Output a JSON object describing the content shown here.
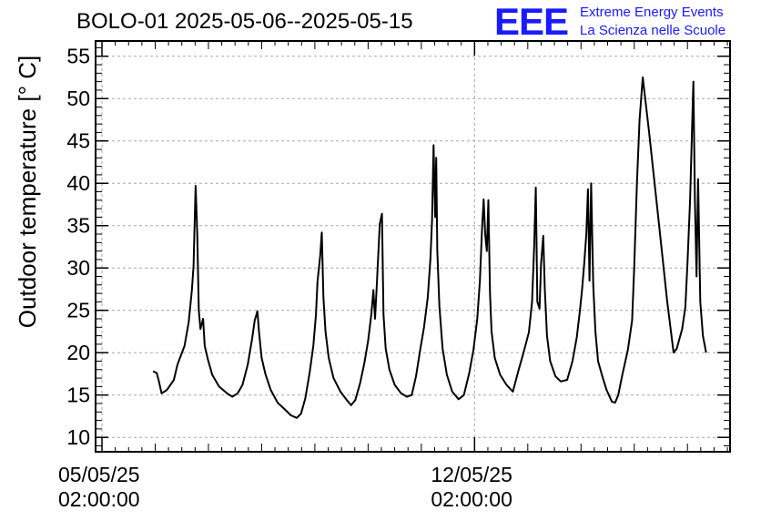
{
  "header": {
    "title": "BOLO-01 2025-05-06--2025-05-15"
  },
  "logo": {
    "mark": "EEE",
    "line1": "Extreme Energy Events",
    "line2": "La Scienza nelle Scuole",
    "color": "#1a1aff"
  },
  "chart_data": {
    "type": "line",
    "title": "BOLO-01 2025-05-06--2025-05-15",
    "xlabel": "",
    "ylabel": "Outdoor temperature [° C]",
    "x_unit": "days after 05/05/25 02:00:00",
    "xlim": [
      -0.12,
      11.8
    ],
    "ylim": [
      8.3,
      56.8
    ],
    "yticks": [
      10,
      15,
      20,
      25,
      30,
      35,
      40,
      45,
      50,
      55
    ],
    "xticks": [
      {
        "x": 0,
        "date": "05/05/25",
        "time": "02:00:00"
      },
      {
        "x": 7,
        "date": "12/05/25",
        "time": "02:00:00"
      }
    ],
    "grid": true,
    "line_color": "#000000",
    "series": [
      {
        "name": "",
        "points": [
          [
            0.96,
            17.8
          ],
          [
            1.03,
            17.6
          ],
          [
            1.07,
            16.6
          ],
          [
            1.12,
            15.2
          ],
          [
            1.22,
            15.6
          ],
          [
            1.35,
            16.8
          ],
          [
            1.42,
            18.6
          ],
          [
            1.55,
            20.8
          ],
          [
            1.63,
            23.6
          ],
          [
            1.69,
            27.4
          ],
          [
            1.72,
            30.2
          ],
          [
            1.76,
            39.7
          ],
          [
            1.79,
            34.0
          ],
          [
            1.82,
            25.0
          ],
          [
            1.85,
            22.8
          ],
          [
            1.9,
            24.0
          ],
          [
            1.93,
            20.8
          ],
          [
            1.99,
            19.2
          ],
          [
            2.07,
            17.4
          ],
          [
            2.2,
            16.0
          ],
          [
            2.35,
            15.2
          ],
          [
            2.45,
            14.8
          ],
          [
            2.55,
            15.2
          ],
          [
            2.64,
            16.2
          ],
          [
            2.74,
            18.6
          ],
          [
            2.82,
            21.6
          ],
          [
            2.87,
            23.8
          ],
          [
            2.92,
            24.9
          ],
          [
            2.95,
            22.5
          ],
          [
            3.0,
            19.4
          ],
          [
            3.07,
            17.5
          ],
          [
            3.17,
            15.6
          ],
          [
            3.3,
            14.1
          ],
          [
            3.42,
            13.4
          ],
          [
            3.55,
            12.6
          ],
          [
            3.66,
            12.3
          ],
          [
            3.74,
            12.8
          ],
          [
            3.82,
            14.6
          ],
          [
            3.9,
            17.6
          ],
          [
            3.97,
            20.8
          ],
          [
            4.02,
            24.5
          ],
          [
            4.05,
            28.4
          ],
          [
            4.1,
            31.5
          ],
          [
            4.13,
            34.2
          ],
          [
            4.16,
            26.5
          ],
          [
            4.2,
            22.5
          ],
          [
            4.26,
            19.4
          ],
          [
            4.35,
            17.0
          ],
          [
            4.48,
            15.4
          ],
          [
            4.6,
            14.4
          ],
          [
            4.68,
            13.8
          ],
          [
            4.76,
            14.4
          ],
          [
            4.85,
            16.4
          ],
          [
            4.93,
            18.8
          ],
          [
            5.0,
            21.4
          ],
          [
            5.06,
            24.5
          ],
          [
            5.1,
            27.4
          ],
          [
            5.13,
            24.0
          ],
          [
            5.16,
            27.5
          ],
          [
            5.22,
            35.2
          ],
          [
            5.26,
            36.4
          ],
          [
            5.29,
            24.5
          ],
          [
            5.33,
            20.5
          ],
          [
            5.4,
            18.0
          ],
          [
            5.5,
            16.2
          ],
          [
            5.62,
            15.2
          ],
          [
            5.73,
            14.8
          ],
          [
            5.82,
            15.0
          ],
          [
            5.9,
            17.2
          ],
          [
            5.98,
            20.4
          ],
          [
            6.05,
            23.0
          ],
          [
            6.12,
            26.5
          ],
          [
            6.17,
            31.0
          ],
          [
            6.2,
            35.5
          ],
          [
            6.23,
            44.5
          ],
          [
            6.26,
            36.0
          ],
          [
            6.28,
            43.0
          ],
          [
            6.3,
            32.0
          ],
          [
            6.34,
            25.5
          ],
          [
            6.4,
            20.5
          ],
          [
            6.48,
            17.4
          ],
          [
            6.58,
            15.4
          ],
          [
            6.7,
            14.5
          ],
          [
            6.8,
            15.0
          ],
          [
            6.9,
            17.6
          ],
          [
            6.98,
            20.4
          ],
          [
            7.05,
            24.0
          ],
          [
            7.1,
            28.5
          ],
          [
            7.14,
            34.5
          ],
          [
            7.17,
            38.1
          ],
          [
            7.2,
            34.0
          ],
          [
            7.23,
            32.0
          ],
          [
            7.26,
            38.0
          ],
          [
            7.29,
            27.0
          ],
          [
            7.32,
            22.5
          ],
          [
            7.38,
            19.4
          ],
          [
            7.48,
            17.4
          ],
          [
            7.6,
            16.2
          ],
          [
            7.72,
            15.4
          ],
          [
            7.82,
            17.8
          ],
          [
            7.92,
            20.0
          ],
          [
            8.02,
            22.4
          ],
          [
            8.08,
            26.0
          ],
          [
            8.12,
            32.5
          ],
          [
            8.15,
            39.5
          ],
          [
            8.18,
            26.0
          ],
          [
            8.22,
            25.2
          ],
          [
            8.25,
            30.5
          ],
          [
            8.29,
            33.8
          ],
          [
            8.32,
            27.5
          ],
          [
            8.36,
            22.0
          ],
          [
            8.42,
            19.0
          ],
          [
            8.52,
            17.2
          ],
          [
            8.62,
            16.6
          ],
          [
            8.74,
            16.8
          ],
          [
            8.84,
            19.0
          ],
          [
            8.92,
            21.8
          ],
          [
            8.98,
            25.0
          ],
          [
            9.02,
            27.4
          ],
          [
            9.06,
            30.5
          ],
          [
            9.1,
            34.0
          ],
          [
            9.13,
            39.3
          ],
          [
            9.16,
            28.5
          ],
          [
            9.19,
            40.0
          ],
          [
            9.23,
            28.0
          ],
          [
            9.27,
            22.5
          ],
          [
            9.32,
            19.0
          ],
          [
            9.4,
            17.2
          ],
          [
            9.48,
            15.6
          ],
          [
            9.58,
            14.2
          ],
          [
            9.64,
            14.1
          ],
          [
            9.7,
            15.0
          ],
          [
            9.78,
            17.5
          ],
          [
            9.88,
            20.3
          ],
          [
            9.96,
            23.8
          ],
          [
            10.0,
            30.0
          ],
          [
            10.05,
            40.0
          ],
          [
            10.1,
            47.5
          ],
          [
            10.16,
            52.5
          ],
          [
            10.28,
            46.0
          ],
          [
            10.45,
            36.0
          ],
          [
            10.62,
            26.0
          ],
          [
            10.74,
            20.0
          ],
          [
            10.8,
            20.5
          ],
          [
            10.9,
            22.8
          ],
          [
            10.96,
            25.4
          ],
          [
            11.0,
            30.5
          ],
          [
            11.05,
            38.0
          ],
          [
            11.08,
            45.0
          ],
          [
            11.11,
            52.0
          ],
          [
            11.14,
            38.0
          ],
          [
            11.17,
            29.0
          ],
          [
            11.2,
            40.5
          ],
          [
            11.24,
            26.0
          ],
          [
            11.29,
            22.0
          ],
          [
            11.35,
            20.0
          ]
        ]
      }
    ]
  }
}
